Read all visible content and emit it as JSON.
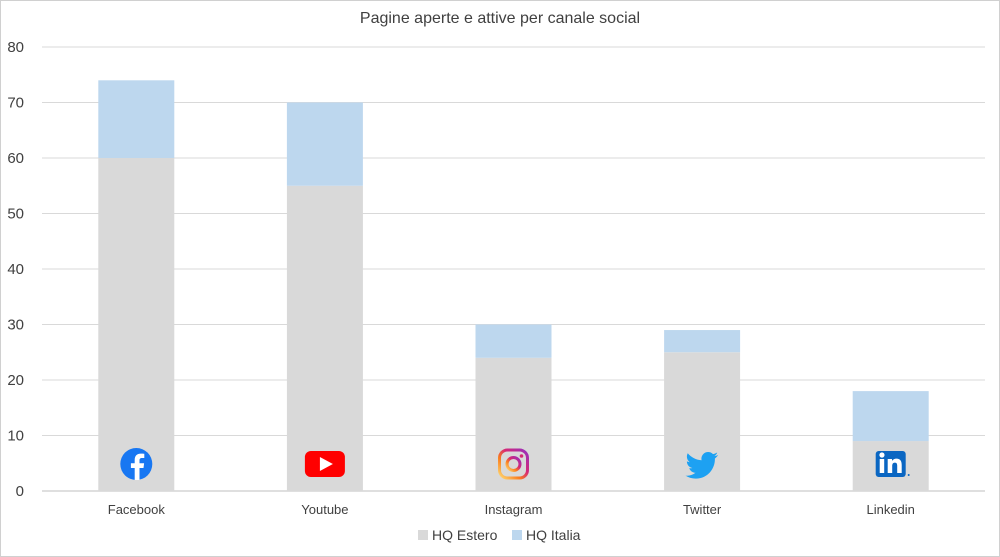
{
  "chart_data": {
    "type": "bar",
    "stacked": true,
    "title": "Pagine aperte e attive per canale social",
    "categories": [
      "Facebook",
      "Youtube",
      "Instagram",
      "Twitter",
      "Linkedin"
    ],
    "category_icons": [
      "facebook-icon",
      "youtube-icon",
      "instagram-icon",
      "twitter-icon",
      "linkedin-icon"
    ],
    "series": [
      {
        "name": "HQ Estero",
        "values": [
          60,
          55,
          24,
          25,
          9
        ],
        "color": "#d9d9d9"
      },
      {
        "name": "HQ Italia",
        "values": [
          14,
          15,
          6,
          4,
          9
        ],
        "color": "#bdd7ee"
      }
    ],
    "ylim": [
      0,
      80
    ],
    "yticks": [
      0,
      10,
      20,
      30,
      40,
      50,
      60,
      70,
      80
    ],
    "grid": true,
    "legend": "bottom"
  }
}
